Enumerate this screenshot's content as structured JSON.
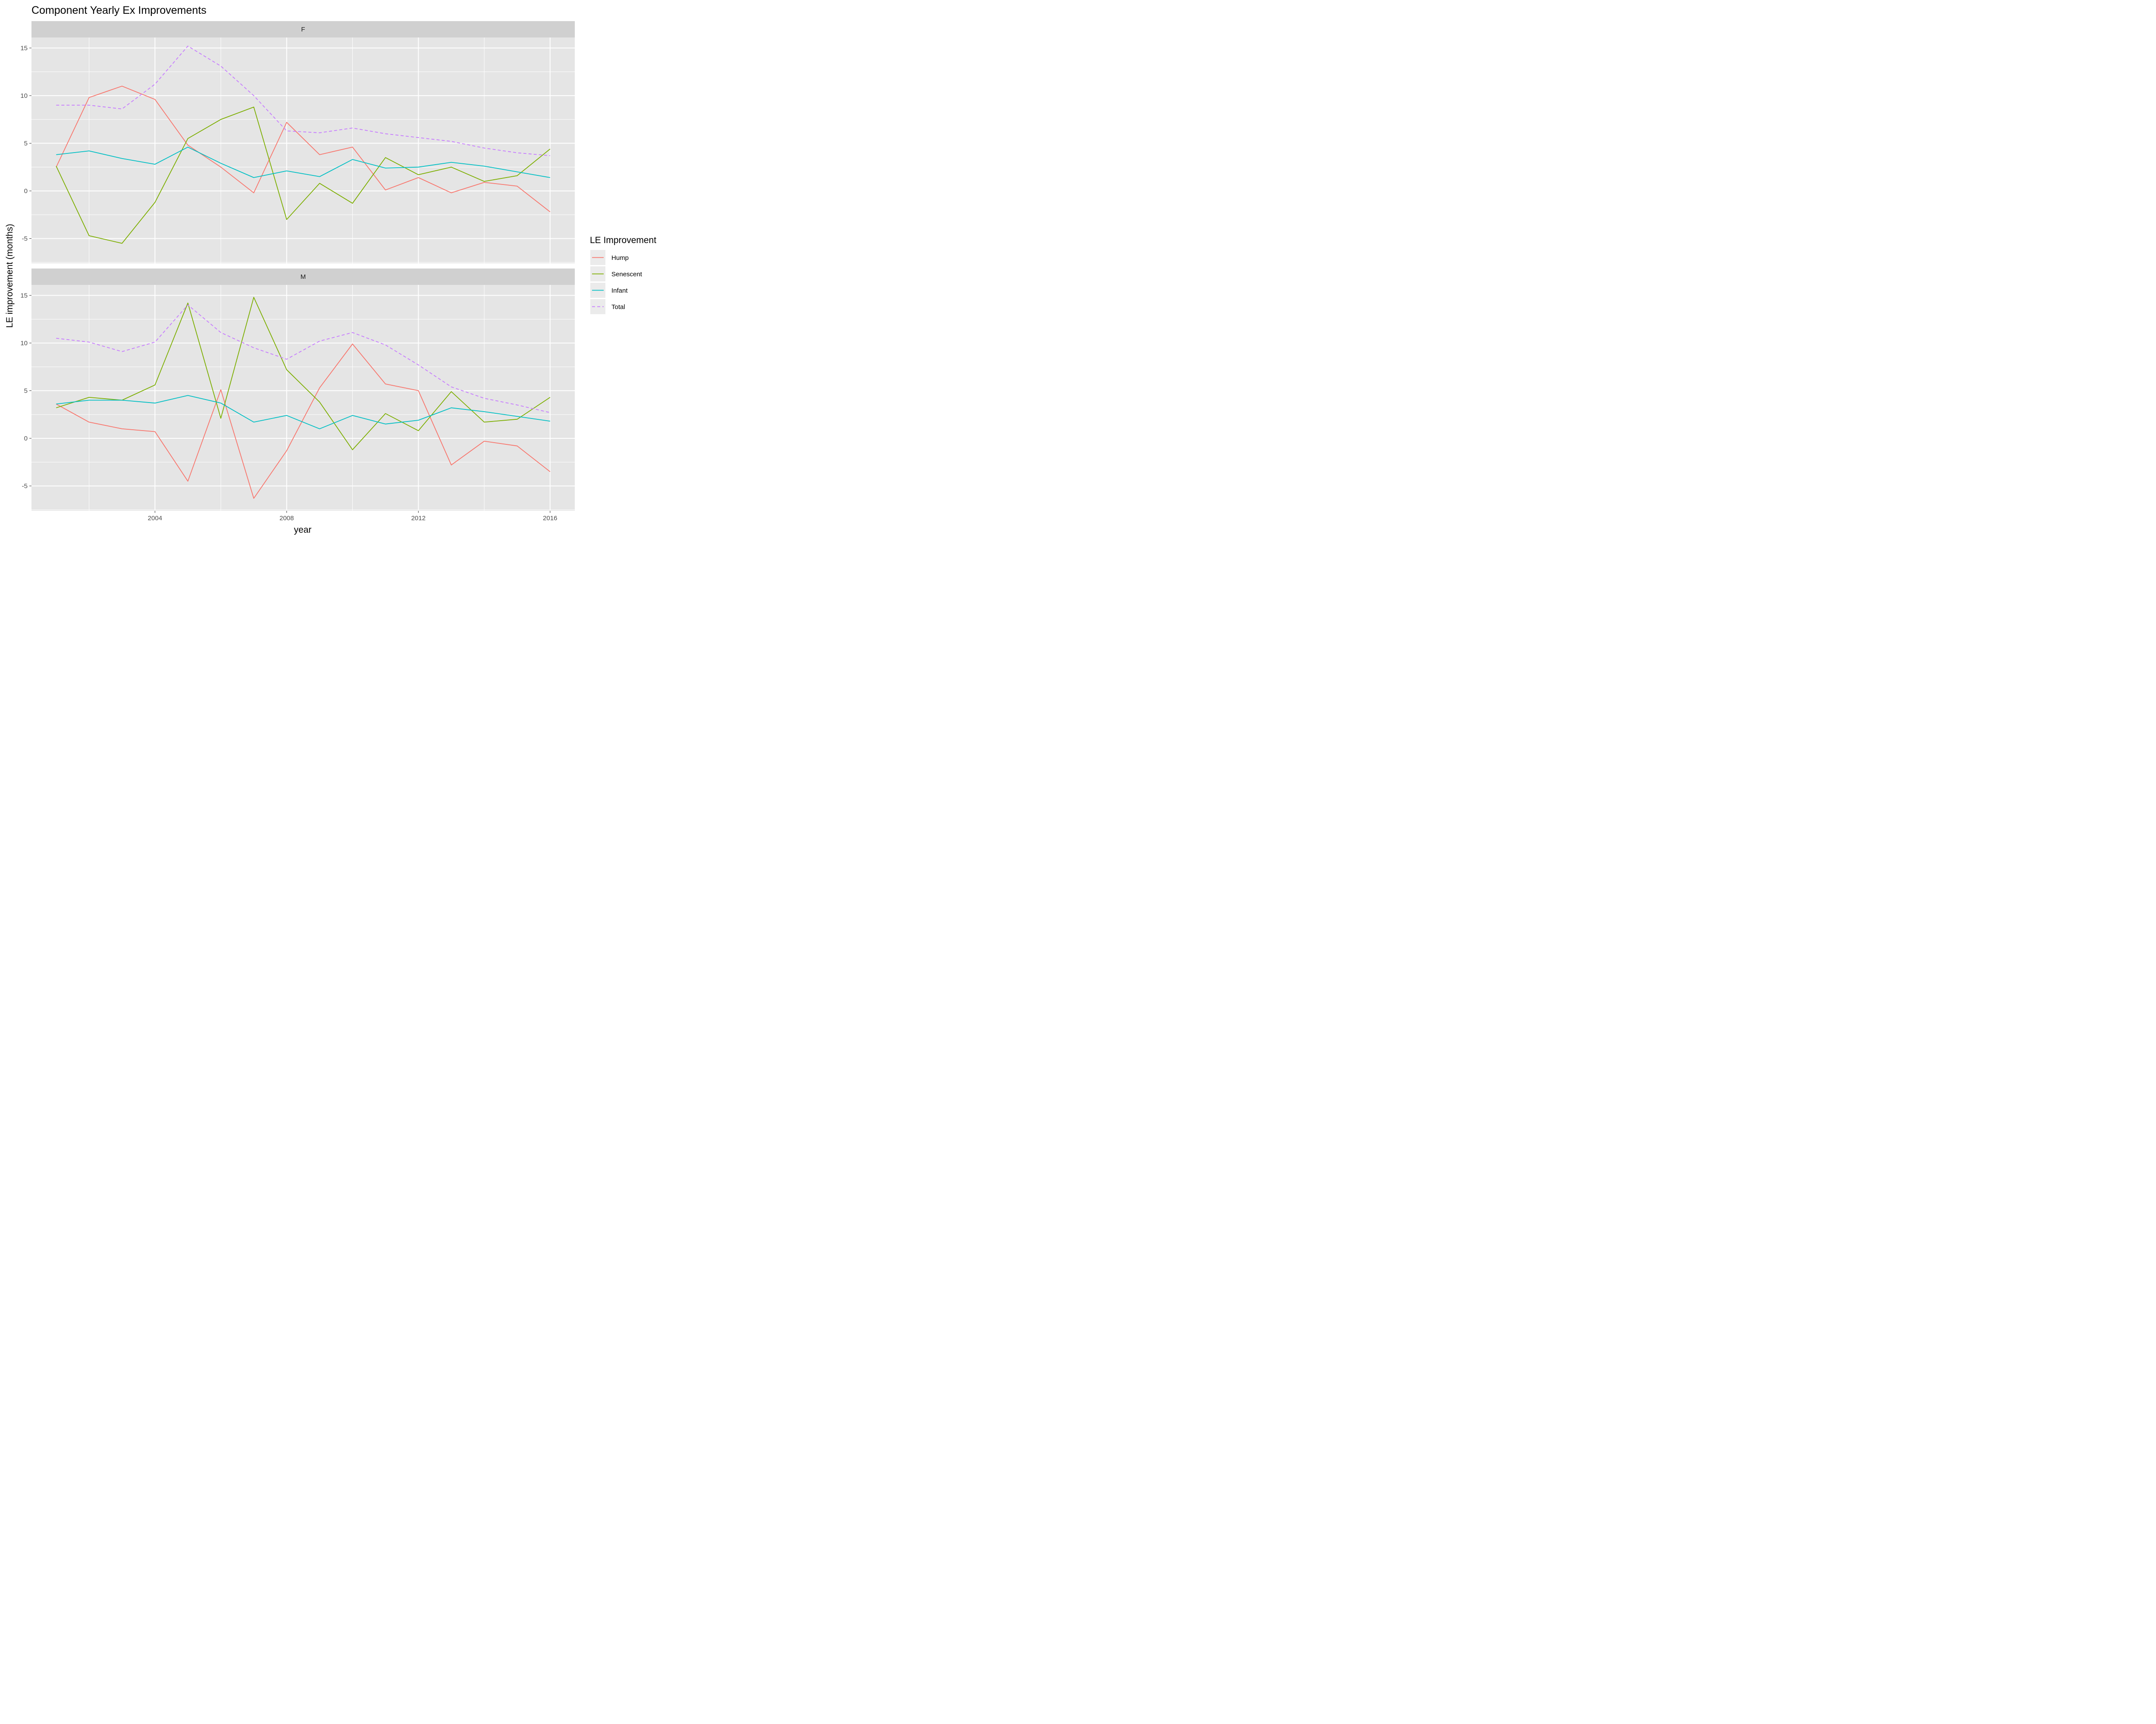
{
  "chart_data": {
    "type": "line",
    "title": "Component Yearly Ex Improvements",
    "xlabel": "year",
    "ylabel": "LE improvement (months)",
    "x": [
      2001,
      2002,
      2003,
      2004,
      2005,
      2006,
      2007,
      2008,
      2009,
      2010,
      2011,
      2012,
      2013,
      2014,
      2015,
      2016
    ],
    "xlim": [
      2000.25,
      2016.75
    ],
    "x_ticks": [
      2004,
      2008,
      2012,
      2016
    ],
    "x_tick_labels": [
      "2004",
      "2008",
      "2012",
      "2016"
    ],
    "ylim": [
      -7.6,
      16.1
    ],
    "y_ticks": [
      -5,
      0,
      5,
      10,
      15
    ],
    "y_tick_labels": [
      "-5",
      "0",
      "5",
      "10",
      "15"
    ],
    "grid": true,
    "legend": {
      "title": "LE Improvement",
      "placement": "right",
      "entries": [
        "Hump",
        "Senescent",
        "Infant",
        "Total"
      ]
    },
    "panels": [
      {
        "label": "F",
        "series": [
          {
            "name": "Hump",
            "color": "#F8766D",
            "dashed": false,
            "values": [
              2.5,
              9.8,
              11.0,
              9.6,
              4.8,
              2.5,
              -0.2,
              7.2,
              3.8,
              4.6,
              0.1,
              1.4,
              -0.2,
              0.9,
              0.5,
              -2.2
            ]
          },
          {
            "name": "Senescent",
            "color": "#7CAE00",
            "dashed": false,
            "values": [
              2.6,
              -4.7,
              -5.5,
              -1.2,
              5.5,
              7.5,
              8.8,
              -3.0,
              0.8,
              -1.3,
              3.5,
              1.7,
              2.5,
              1.0,
              1.6,
              4.4
            ]
          },
          {
            "name": "Infant",
            "color": "#00BFC4",
            "dashed": false,
            "values": [
              3.8,
              4.2,
              3.4,
              2.8,
              4.6,
              2.9,
              1.4,
              2.1,
              1.5,
              3.3,
              2.4,
              2.5,
              3.0,
              2.6,
              2.0,
              1.4
            ]
          },
          {
            "name": "Total",
            "color": "#C77CFF",
            "dashed": true,
            "values": [
              9.0,
              9.0,
              8.6,
              11.2,
              15.2,
              13.1,
              10.0,
              6.3,
              6.1,
              6.6,
              6.0,
              5.6,
              5.2,
              4.5,
              4.0,
              3.7
            ]
          }
        ]
      },
      {
        "label": "M",
        "series": [
          {
            "name": "Hump",
            "color": "#F8766D",
            "dashed": false,
            "values": [
              3.6,
              1.7,
              1.0,
              0.7,
              -4.5,
              5.1,
              -6.3,
              -1.3,
              5.3,
              9.9,
              5.7,
              5.0,
              -2.8,
              -0.3,
              -0.8,
              -3.5
            ]
          },
          {
            "name": "Senescent",
            "color": "#7CAE00",
            "dashed": false,
            "values": [
              3.2,
              4.3,
              4.0,
              5.6,
              14.2,
              2.1,
              14.8,
              7.2,
              3.8,
              -1.2,
              2.6,
              0.8,
              4.9,
              1.7,
              2.0,
              4.3
            ]
          },
          {
            "name": "Infant",
            "color": "#00BFC4",
            "dashed": false,
            "values": [
              3.6,
              4.0,
              4.0,
              3.7,
              4.5,
              3.7,
              1.7,
              2.4,
              1.0,
              2.4,
              1.5,
              1.9,
              3.2,
              2.8,
              2.3,
              1.8
            ]
          },
          {
            "name": "Total",
            "color": "#C77CFF",
            "dashed": true,
            "values": [
              10.5,
              10.1,
              9.1,
              10.1,
              14.0,
              11.1,
              9.5,
              8.3,
              10.2,
              11.1,
              9.8,
              7.7,
              5.4,
              4.2,
              3.5,
              2.7
            ]
          }
        ]
      }
    ]
  }
}
